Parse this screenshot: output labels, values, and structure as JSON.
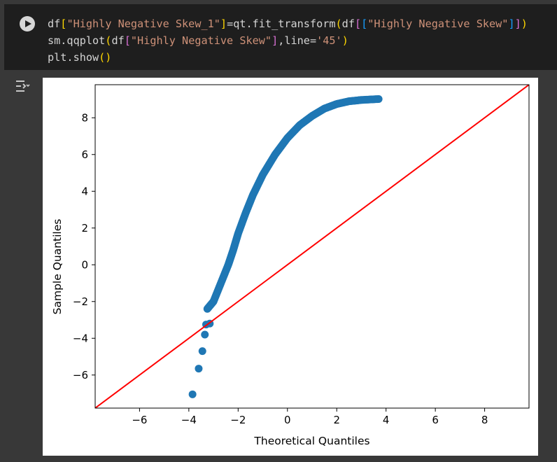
{
  "cell": {
    "run_button_icon": "play-circle-icon",
    "code_lines": [
      {
        "tokens": [
          {
            "t": "df",
            "c": ""
          },
          {
            "t": "[",
            "c": "b1"
          },
          {
            "t": "\"Highly Negative Skew_1\"",
            "c": "str"
          },
          {
            "t": "]",
            "c": "b1"
          },
          {
            "t": "=qt.fit_transform",
            "c": ""
          },
          {
            "t": "(",
            "c": "b1"
          },
          {
            "t": "df",
            "c": ""
          },
          {
            "t": "[",
            "c": "b2"
          },
          {
            "t": "[",
            "c": "b3"
          },
          {
            "t": "\"Highly Negative Skew\"",
            "c": "str"
          },
          {
            "t": "]",
            "c": "b3"
          },
          {
            "t": "]",
            "c": "b2"
          },
          {
            "t": ")",
            "c": "b1"
          }
        ]
      },
      {
        "tokens": [
          {
            "t": "sm.qqplot",
            "c": ""
          },
          {
            "t": "(",
            "c": "b1"
          },
          {
            "t": "df",
            "c": ""
          },
          {
            "t": "[",
            "c": "b2"
          },
          {
            "t": "\"Highly Negative Skew\"",
            "c": "str"
          },
          {
            "t": "]",
            "c": "b2"
          },
          {
            "t": ",line=",
            "c": ""
          },
          {
            "t": "'45'",
            "c": "str"
          },
          {
            "t": ")",
            "c": "b1"
          }
        ]
      },
      {
        "tokens": [
          {
            "t": "plt.show",
            "c": ""
          },
          {
            "t": "()",
            "c": "b1"
          }
        ]
      }
    ]
  },
  "output_toggle_icon": "output-toggle-icon",
  "chart_data": {
    "type": "scatter",
    "xlabel": "Theoretical Quantiles",
    "ylabel": "Sample Quantiles",
    "xlim": [
      -7.8,
      9.8
    ],
    "ylim": [
      -7.8,
      9.8
    ],
    "xticks": [
      -6,
      -4,
      -2,
      0,
      2,
      4,
      6,
      8
    ],
    "yticks": [
      -6,
      -4,
      -2,
      0,
      2,
      4,
      6,
      8
    ],
    "reference_line": {
      "label": "45-degree line",
      "color": "#ff0000"
    },
    "marker_color": "#1f77b4",
    "points_outliers": [
      [
        -3.85,
        -7.05
      ],
      [
        -3.6,
        -5.65
      ],
      [
        -3.45,
        -4.7
      ],
      [
        -3.35,
        -3.8
      ],
      [
        -3.3,
        -3.25
      ],
      [
        -3.15,
        -3.2
      ]
    ],
    "curve_points": [
      [
        -3.25,
        -2.4
      ],
      [
        -3.0,
        -2.0
      ],
      [
        -2.7,
        -1.0
      ],
      [
        -2.4,
        0.0
      ],
      [
        -2.2,
        0.8
      ],
      [
        -2.0,
        1.7
      ],
      [
        -1.7,
        2.8
      ],
      [
        -1.4,
        3.8
      ],
      [
        -1.0,
        4.9
      ],
      [
        -0.5,
        6.0
      ],
      [
        0.0,
        6.9
      ],
      [
        0.5,
        7.6
      ],
      [
        1.0,
        8.1
      ],
      [
        1.5,
        8.5
      ],
      [
        2.0,
        8.75
      ],
      [
        2.5,
        8.9
      ],
      [
        3.0,
        8.97
      ],
      [
        3.7,
        9.02
      ]
    ]
  }
}
